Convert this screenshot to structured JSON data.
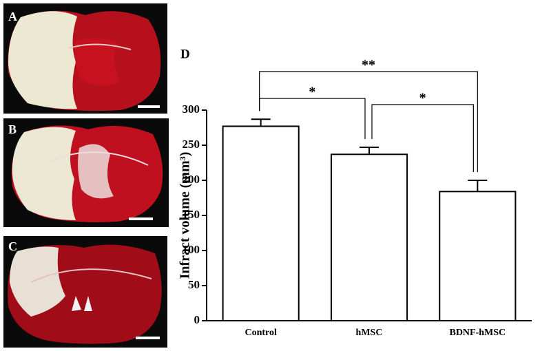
{
  "panels": {
    "a": "A",
    "b": "B",
    "c": "C"
  },
  "chart_data": {
    "type": "bar",
    "panel_label": "D",
    "ylabel": "Infract volume (mm³)",
    "categories": [
      "Control",
      "hMSC",
      "BDNF-hMSC"
    ],
    "values": [
      277,
      237,
      184
    ],
    "errors": [
      10,
      10,
      16
    ],
    "color": "#ffffff",
    "ylim": [
      0,
      300
    ],
    "yticks": [
      0,
      50,
      100,
      150,
      200,
      250,
      300
    ],
    "annotations": [
      {
        "label": "**",
        "between": [
          "Control",
          "BDNF-hMSC"
        ]
      },
      {
        "label": "*",
        "between": [
          "Control",
          "hMSC"
        ]
      },
      {
        "label": "*",
        "between": [
          "hMSC",
          "BDNF-hMSC"
        ]
      }
    ]
  }
}
